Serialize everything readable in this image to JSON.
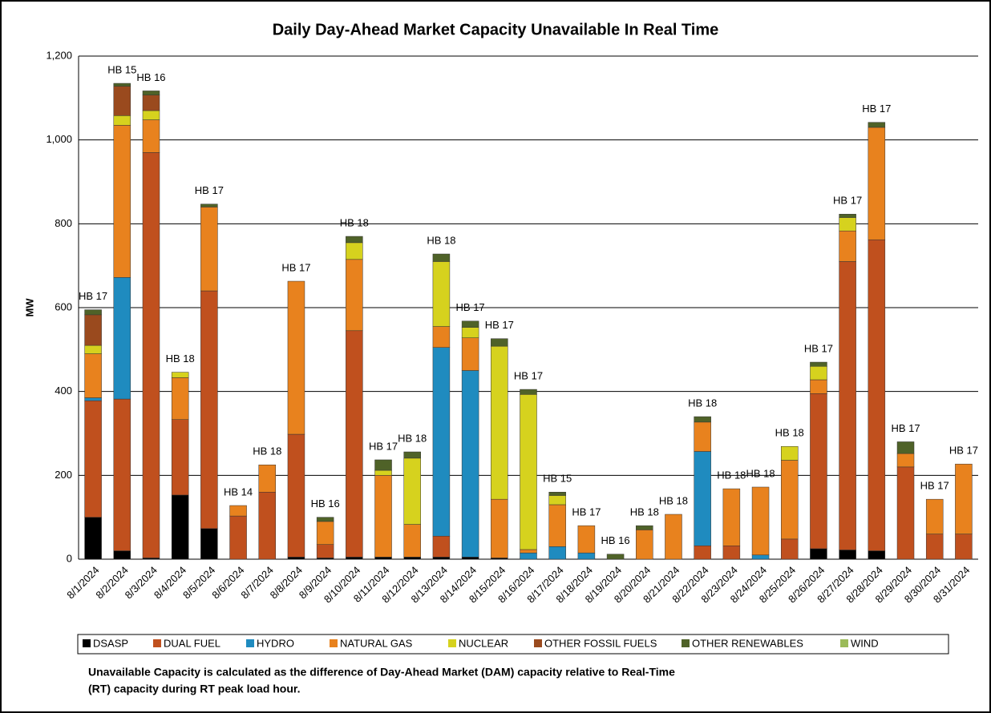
{
  "chart_data": {
    "type": "stacked_bar",
    "title": "Daily Day-Ahead Market Capacity Unavailable In Real Time",
    "y_label": "MW",
    "categories": [
      "8/1/2024",
      "8/2/2024",
      "8/3/2024",
      "8/4/2024",
      "8/5/2024",
      "8/6/2024",
      "8/7/2024",
      "8/8/2024",
      "8/9/2024",
      "8/10/2024",
      "8/11/2024",
      "8/12/2024",
      "8/13/2024",
      "8/14/2024",
      "8/15/2024",
      "8/16/2024",
      "8/17/2024",
      "8/18/2024",
      "8/19/2024",
      "8/20/2024",
      "8/21/2024",
      "8/22/2024",
      "8/23/2024",
      "8/24/2024",
      "8/25/2024",
      "8/26/2024",
      "8/27/2024",
      "8/28/2024",
      "8/29/2024",
      "8/30/2024",
      "8/31/2024"
    ],
    "bar_labels": [
      "HB 17",
      "HB 15",
      "HB 16",
      "HB 18",
      "HB 17",
      "HB 14",
      "HB 18",
      "HB 17",
      "HB 16",
      "HB 18",
      "HB 17",
      "HB 18",
      "HB 18",
      "HB 17",
      "HB 17",
      "HB 17",
      "HB 15",
      "HB 17",
      "HB 16",
      "HB 18",
      "HB 18",
      "HB 18",
      "HB 18",
      "HB 18",
      "HB 18",
      "HB 17",
      "HB 17",
      "HB 17",
      "HB 17",
      "HB 17",
      "HB 17"
    ],
    "series": [
      {
        "name": "DSASP",
        "color": "#000000",
        "values": [
          100,
          20,
          3,
          153,
          73,
          0,
          0,
          5,
          3,
          5,
          5,
          5,
          5,
          5,
          3,
          0,
          0,
          0,
          0,
          0,
          0,
          0,
          0,
          0,
          0,
          25,
          22,
          20,
          0,
          0,
          0
        ]
      },
      {
        "name": "DUAL FUEL",
        "color": "#c0501e",
        "values": [
          278,
          362,
          967,
          180,
          567,
          103,
          160,
          293,
          32,
          540,
          0,
          0,
          50,
          0,
          0,
          0,
          0,
          0,
          0,
          0,
          0,
          32,
          32,
          0,
          48,
          370,
          688,
          742,
          220,
          60,
          60
        ]
      },
      {
        "name": "HYDRO",
        "color": "#1f8bbf",
        "values": [
          7,
          290,
          0,
          0,
          0,
          0,
          0,
          0,
          0,
          0,
          0,
          0,
          450,
          445,
          0,
          15,
          30,
          15,
          0,
          0,
          0,
          225,
          0,
          10,
          0,
          0,
          0,
          0,
          0,
          0,
          0
        ]
      },
      {
        "name": "NATURAL GAS",
        "color": "#e8821e",
        "values": [
          105,
          363,
          78,
          100,
          200,
          25,
          65,
          365,
          55,
          170,
          195,
          78,
          50,
          78,
          140,
          8,
          100,
          65,
          0,
          70,
          107,
          70,
          136,
          162,
          188,
          33,
          73,
          268,
          32,
          83,
          167
        ]
      },
      {
        "name": "NUCLEAR",
        "color": "#d6d21e",
        "values": [
          20,
          23,
          22,
          13,
          0,
          0,
          0,
          0,
          0,
          40,
          12,
          158,
          155,
          25,
          365,
          370,
          22,
          0,
          0,
          0,
          0,
          0,
          0,
          0,
          33,
          32,
          32,
          0,
          0,
          0,
          0
        ]
      },
      {
        "name": "OTHER FOSSIL FUELS",
        "color": "#9a4a1e",
        "values": [
          73,
          70,
          37,
          0,
          0,
          0,
          0,
          0,
          0,
          0,
          0,
          0,
          0,
          0,
          0,
          0,
          0,
          0,
          0,
          0,
          0,
          0,
          0,
          0,
          0,
          0,
          0,
          0,
          0,
          0,
          0
        ]
      },
      {
        "name": "OTHER RENEWABLES",
        "color": "#4f6228",
        "values": [
          12,
          7,
          10,
          0,
          7,
          0,
          0,
          0,
          10,
          15,
          25,
          15,
          18,
          15,
          18,
          12,
          8,
          0,
          12,
          10,
          0,
          13,
          0,
          0,
          0,
          10,
          8,
          12,
          28,
          0,
          0
        ]
      },
      {
        "name": "WIND",
        "color": "#9bbb59",
        "values": [
          0,
          0,
          0,
          0,
          0,
          0,
          0,
          0,
          0,
          0,
          0,
          0,
          0,
          0,
          0,
          0,
          0,
          0,
          0,
          0,
          0,
          0,
          0,
          0,
          0,
          0,
          0,
          0,
          0,
          0,
          0
        ]
      }
    ],
    "ylim": [
      0,
      1200
    ],
    "yticks": [
      0,
      200,
      400,
      600,
      800,
      {
        "value": 1000,
        "label": "1,000"
      },
      {
        "value": 1200,
        "label": "1,200"
      }
    ],
    "grid": true,
    "legend": "bottom",
    "note": [
      "Unavailable Capacity is calculated as the difference of Day-Ahead Market (DAM) capacity relative to Real-Time",
      "(RT) capacity during RT peak load hour."
    ]
  }
}
